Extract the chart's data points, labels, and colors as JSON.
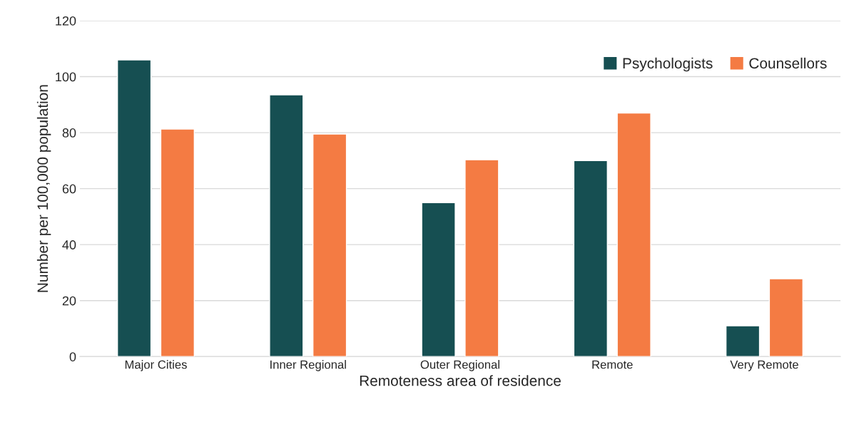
{
  "chart_data": {
    "type": "bar",
    "xlabel": "Remoteness area of residence",
    "ylabel": "Number per 100,000 population",
    "categories": [
      "Major Cities",
      "Inner Regional",
      "Outer Regional",
      "Remote",
      "Very Remote"
    ],
    "series": [
      {
        "name": "Psychologists",
        "color": "#164f52",
        "values": [
          106,
          93.5,
          55,
          70,
          11
        ]
      },
      {
        "name": "Counsellors",
        "color": "#f47b43",
        "values": [
          81.3,
          79.5,
          70.3,
          87,
          27.8
        ]
      }
    ],
    "ylim": [
      0,
      120
    ],
    "yticks": [
      0,
      20,
      40,
      60,
      80,
      100,
      120
    ],
    "grid": "y",
    "legend": "top right"
  }
}
